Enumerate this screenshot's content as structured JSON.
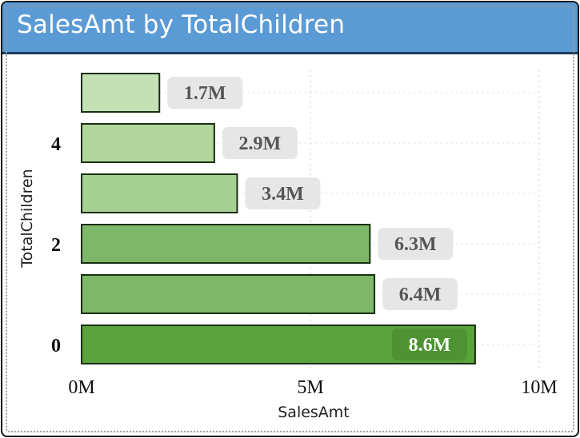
{
  "title": "SalesAmt by TotalChildren",
  "chart_data": {
    "type": "bar",
    "orientation": "horizontal",
    "title": "SalesAmt by TotalChildren",
    "xlabel": "SalesAmt",
    "ylabel": "TotalChildren",
    "xlim": [
      0,
      10000000
    ],
    "x_ticks": [
      "0M",
      "5M",
      "10M"
    ],
    "categories": [
      "0",
      "1",
      "2",
      "3",
      "4",
      "5"
    ],
    "category_labels_shown": [
      "0",
      "",
      "2",
      "",
      "4",
      ""
    ],
    "values": [
      8600000,
      6400000,
      6300000,
      3400000,
      2900000,
      1700000
    ],
    "data_labels": [
      "8.6M",
      "6.4M",
      "6.3M",
      "3.4M",
      "2.9M",
      "1.7M"
    ],
    "bar_colors": [
      "#5aa33a",
      "#7cb867",
      "#7cb867",
      "#a6d090",
      "#b0d69c",
      "#c4e0b5"
    ],
    "grid": true,
    "legend": "none"
  }
}
